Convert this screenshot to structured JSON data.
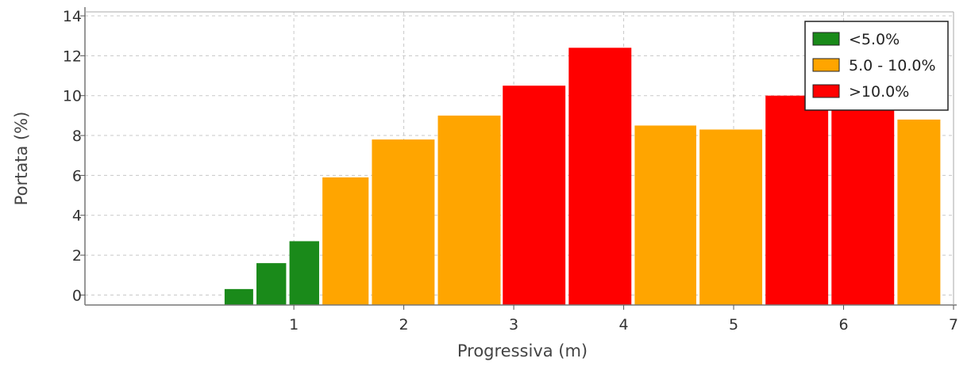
{
  "chart_data": {
    "type": "bar",
    "xlabel": "Progressiva (m)",
    "ylabel": "Portata (%)",
    "xlim": [
      -0.9,
      7
    ],
    "ylim": [
      -0.5,
      14.2
    ],
    "x_ticks": [
      "1",
      "2",
      "3",
      "4",
      "5",
      "6",
      "7"
    ],
    "y_ticks": [
      "0",
      "2",
      "4",
      "6",
      "8",
      "10",
      "12",
      "14"
    ],
    "grid": true,
    "legend_position": "top-right",
    "legend": [
      {
        "label": "<5.0%",
        "color": "#1a8a1a"
      },
      {
        "label": "5.0 - 10.0%",
        "color": "#ffa500"
      },
      {
        "label": ">10.0%",
        "color": "#ff0000"
      }
    ],
    "bars": [
      {
        "x0": 0.37,
        "x1": 0.63,
        "value": 0.3,
        "class": "<5.0%"
      },
      {
        "x0": 0.66,
        "x1": 0.93,
        "value": 1.6,
        "class": "<5.0%"
      },
      {
        "x0": 0.96,
        "x1": 1.23,
        "value": 2.7,
        "class": "<5.0%"
      },
      {
        "x0": 1.26,
        "x1": 1.68,
        "value": 5.9,
        "class": "5.0 - 10.0%"
      },
      {
        "x0": 1.71,
        "x1": 2.28,
        "value": 7.8,
        "class": "5.0 - 10.0%"
      },
      {
        "x0": 2.31,
        "x1": 2.88,
        "value": 9.0,
        "class": "5.0 - 10.0%"
      },
      {
        "x0": 2.9,
        "x1": 3.47,
        "value": 10.5,
        "class": ">10.0%"
      },
      {
        "x0": 3.5,
        "x1": 4.07,
        "value": 12.4,
        "class": ">10.0%"
      },
      {
        "x0": 4.1,
        "x1": 4.66,
        "value": 8.5,
        "class": "5.0 - 10.0%"
      },
      {
        "x0": 4.69,
        "x1": 5.26,
        "value": 8.3,
        "class": "5.0 - 10.0%"
      },
      {
        "x0": 5.29,
        "x1": 5.86,
        "value": 10.0,
        "class": ">10.0%"
      },
      {
        "x0": 5.89,
        "x1": 6.46,
        "value": 10.0,
        "class": ">10.0%"
      },
      {
        "x0": 6.49,
        "x1": 6.88,
        "value": 8.8,
        "class": "5.0 - 10.0%"
      }
    ]
  }
}
